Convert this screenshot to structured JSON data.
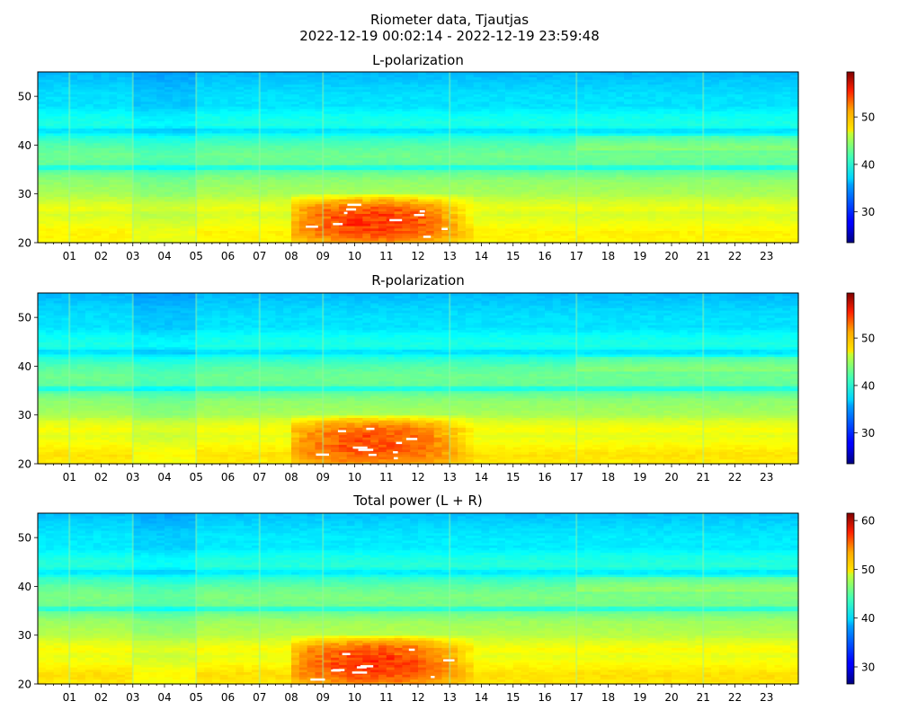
{
  "figure": {
    "title_line1": "Riometer data, Tjautjas",
    "title_line2": "2022-12-19 00:02:14 - 2022-12-19 23:59:48"
  },
  "chart_data": [
    {
      "type": "heatmap",
      "title": "L-polarization",
      "xlabel": "",
      "ylabel": "",
      "x_unit": "hour of day",
      "xlim": [
        0,
        24
      ],
      "ylim": [
        20,
        55
      ],
      "x_ticks": [
        1,
        2,
        3,
        4,
        5,
        6,
        7,
        8,
        9,
        10,
        11,
        12,
        13,
        14,
        15,
        16,
        17,
        18,
        19,
        20,
        21,
        22,
        23
      ],
      "x_tick_labels": [
        "01",
        "02",
        "03",
        "04",
        "05",
        "06",
        "07",
        "08",
        "09",
        "10",
        "11",
        "12",
        "13",
        "14",
        "15",
        "16",
        "17",
        "18",
        "19",
        "20",
        "21",
        "22",
        "23"
      ],
      "y_ticks": [
        20,
        30,
        40,
        50
      ],
      "y_tick_labels": [
        "20",
        "30",
        "40",
        "50"
      ],
      "colorbar": {
        "range": [
          23.5,
          59.5
        ],
        "ticks": [
          30,
          40,
          50
        ],
        "tick_labels": [
          "30",
          "40",
          "50"
        ],
        "colormap": "jet"
      },
      "value_profile": {
        "y": [
          20,
          22,
          24,
          26,
          27,
          29,
          30,
          33,
          35,
          35.5,
          36,
          38,
          40,
          42,
          43,
          44,
          46,
          48,
          50,
          52,
          55
        ],
        "value": [
          46,
          46.5,
          45.5,
          44.5,
          45.5,
          44,
          43,
          42,
          40,
          36,
          40.5,
          41,
          40,
          38,
          35.5,
          38,
          37.5,
          36,
          36,
          35.5,
          34.5
        ]
      },
      "enhancement_region": {
        "x": [
          7.9,
          14.5
        ],
        "y": [
          20,
          30
        ],
        "peak_value": 54
      },
      "vertical_streaks_x": [
        1,
        3,
        5,
        7,
        9,
        13,
        17,
        21
      ]
    },
    {
      "type": "heatmap",
      "title": "R-polarization",
      "xlabel": "",
      "ylabel": "",
      "x_unit": "hour of day",
      "xlim": [
        0,
        24
      ],
      "ylim": [
        20,
        55
      ],
      "x_ticks": [
        1,
        2,
        3,
        4,
        5,
        6,
        7,
        8,
        9,
        10,
        11,
        12,
        13,
        14,
        15,
        16,
        17,
        18,
        19,
        20,
        21,
        22,
        23
      ],
      "x_tick_labels": [
        "01",
        "02",
        "03",
        "04",
        "05",
        "06",
        "07",
        "08",
        "09",
        "10",
        "11",
        "12",
        "13",
        "14",
        "15",
        "16",
        "17",
        "18",
        "19",
        "20",
        "21",
        "22",
        "23"
      ],
      "y_ticks": [
        20,
        30,
        40,
        50
      ],
      "y_tick_labels": [
        "20",
        "30",
        "40",
        "50"
      ],
      "colorbar": {
        "range": [
          23.5,
          59.5
        ],
        "ticks": [
          30,
          40,
          50
        ],
        "tick_labels": [
          "30",
          "40",
          "50"
        ],
        "colormap": "jet"
      },
      "value_profile": {
        "y": [
          20,
          22,
          24,
          26,
          27,
          29,
          30,
          33,
          35,
          35.5,
          36,
          38,
          40,
          42,
          43,
          44,
          46,
          48,
          50,
          52,
          55
        ],
        "value": [
          46.5,
          47,
          46,
          45,
          46,
          44.5,
          43,
          42,
          40,
          36,
          40.5,
          41,
          40,
          38,
          35.5,
          38,
          37.5,
          36,
          36,
          35.5,
          34.5
        ]
      },
      "enhancement_region": {
        "x": [
          7.9,
          14.5
        ],
        "y": [
          20,
          30
        ],
        "peak_value": 53
      },
      "vertical_streaks_x": [
        1,
        3,
        5,
        7,
        9,
        13,
        17,
        21
      ]
    },
    {
      "type": "heatmap",
      "title": "Total power (L + R)",
      "xlabel": "",
      "ylabel": "",
      "x_unit": "hour of day",
      "xlim": [
        0,
        24
      ],
      "ylim": [
        20,
        55
      ],
      "x_ticks": [
        1,
        2,
        3,
        4,
        5,
        6,
        7,
        8,
        9,
        10,
        11,
        12,
        13,
        14,
        15,
        16,
        17,
        18,
        19,
        20,
        21,
        22,
        23
      ],
      "x_tick_labels": [
        "01",
        "02",
        "03",
        "04",
        "05",
        "06",
        "07",
        "08",
        "09",
        "10",
        "11",
        "12",
        "13",
        "14",
        "15",
        "16",
        "17",
        "18",
        "19",
        "20",
        "21",
        "22",
        "23"
      ],
      "y_ticks": [
        20,
        30,
        40,
        50
      ],
      "y_tick_labels": [
        "20",
        "30",
        "40",
        "50"
      ],
      "colorbar": {
        "range": [
          26.5,
          61.5
        ],
        "ticks": [
          30,
          40,
          50,
          60
        ],
        "tick_labels": [
          "30",
          "40",
          "50",
          "60"
        ],
        "colormap": "jet"
      },
      "value_profile": {
        "y": [
          20,
          22,
          24,
          26,
          27,
          29,
          30,
          33,
          35,
          35.5,
          36,
          38,
          40,
          42,
          43,
          44,
          46,
          48,
          50,
          52,
          55
        ],
        "value": [
          49,
          49.5,
          48.5,
          47.5,
          48.5,
          47,
          46,
          45,
          43,
          39,
          43.5,
          44,
          43,
          41,
          38.5,
          41,
          40.5,
          39,
          39,
          38.5,
          37.5
        ]
      },
      "enhancement_region": {
        "x": [
          7.9,
          14.5
        ],
        "y": [
          20,
          30
        ],
        "peak_value": 56
      },
      "vertical_streaks_x": [
        1,
        3,
        5,
        7,
        9,
        13,
        17,
        21
      ]
    }
  ]
}
